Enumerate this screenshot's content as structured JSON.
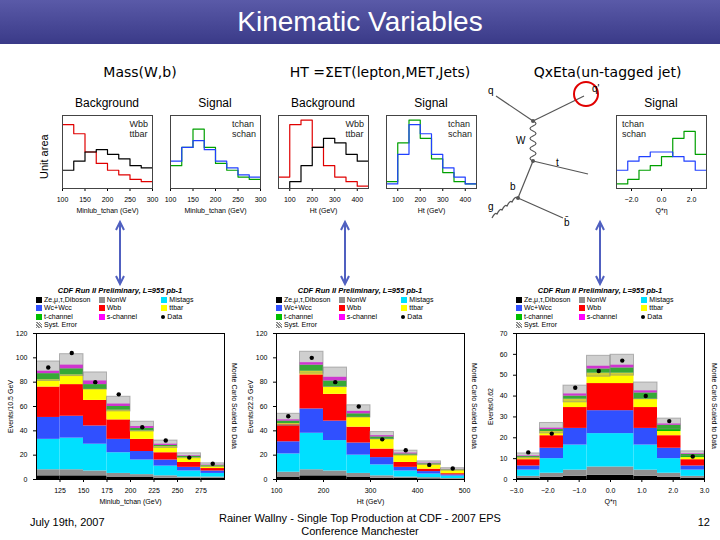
{
  "slide": {
    "title": "Kinematic Variables",
    "headers": [
      "Mass(W,b)",
      "HT =ΣET(lepton,MET,Jets)",
      "Qx​Eta(un-tagged jet)"
    ],
    "y_label": "Unit area",
    "diagram": {
      "labels": [
        "q",
        "q'",
        "W",
        "b",
        "t",
        "g",
        "b̄"
      ]
    },
    "footer": {
      "date": "July 19th, 2007",
      "text": [
        "Rainer Wallny - Single Top Production at CDF  - 2007 EPS",
        "Conference Manchester"
      ],
      "page": "12"
    }
  },
  "chart_data": [
    {
      "type": "histogram",
      "title": "Background",
      "x_label": "Minlub_tchan (GeV)",
      "bins": [
        100,
        125,
        150,
        175,
        200,
        225,
        250,
        275,
        300
      ],
      "xlim": [
        100,
        300
      ],
      "xticks": [
        100,
        150,
        200,
        250,
        300
      ],
      "ylim": [
        0,
        0.32
      ],
      "tick_labels": "x",
      "legend": "top-right",
      "series": [
        {
          "name": "Wbb",
          "color": "#e00000",
          "values": [
            0.28,
            0.24,
            0.16,
            0.11,
            0.08,
            0.06,
            0.04,
            0.03
          ]
        },
        {
          "name": "ttbar",
          "color": "#000000",
          "values": [
            0.08,
            0.12,
            0.16,
            0.17,
            0.15,
            0.13,
            0.1,
            0.09
          ]
        }
      ]
    },
    {
      "type": "histogram",
      "title": "Signal",
      "x_label": "Minlub_tchan (GeV)",
      "bins": [
        100,
        125,
        150,
        175,
        200,
        225,
        250,
        275,
        300
      ],
      "xlim": [
        100,
        300
      ],
      "xticks": [
        100,
        150,
        200,
        250,
        300
      ],
      "ylim": [
        0,
        0.32
      ],
      "tick_labels": "x",
      "legend": "top-right",
      "series": [
        {
          "name": "tchan",
          "color": "#00a000",
          "values": [
            0.1,
            0.18,
            0.26,
            0.18,
            0.11,
            0.08,
            0.05,
            0.04
          ]
        },
        {
          "name": "schan",
          "color": "#2040ff",
          "values": [
            0.12,
            0.18,
            0.21,
            0.17,
            0.12,
            0.09,
            0.06,
            0.05
          ]
        }
      ]
    },
    {
      "type": "histogram",
      "title": "Background",
      "x_label": "Ht (GeV)",
      "bins": [
        50,
        100,
        150,
        200,
        250,
        300,
        350,
        400,
        450
      ],
      "xlim": [
        50,
        450
      ],
      "xticks": [
        100,
        200,
        300,
        400
      ],
      "ylim": [
        0,
        0.32
      ],
      "tick_labels": "x",
      "legend": "top-right",
      "series": [
        {
          "name": "Wbb",
          "color": "#e00000",
          "values": [
            0.05,
            0.28,
            0.3,
            0.18,
            0.1,
            0.05,
            0.03,
            0.01
          ]
        },
        {
          "name": "ttbar",
          "color": "#000000",
          "values": [
            0.0,
            0.03,
            0.1,
            0.18,
            0.22,
            0.2,
            0.15,
            0.12
          ]
        }
      ]
    },
    {
      "type": "histogram",
      "title": "Signal",
      "x_label": "Ht (GeV)",
      "bins": [
        50,
        100,
        150,
        200,
        250,
        300,
        350,
        400,
        450
      ],
      "xlim": [
        50,
        450
      ],
      "xticks": [
        100,
        200,
        300,
        400
      ],
      "ylim": [
        0,
        0.32
      ],
      "tick_labels": "x",
      "legend": "top-right",
      "series": [
        {
          "name": "tchan",
          "color": "#00a000",
          "values": [
            0.03,
            0.2,
            0.3,
            0.22,
            0.13,
            0.07,
            0.03,
            0.02
          ]
        },
        {
          "name": "schan",
          "color": "#2040ff",
          "values": [
            0.02,
            0.15,
            0.28,
            0.24,
            0.15,
            0.09,
            0.05,
            0.02
          ]
        }
      ]
    },
    {
      "type": "histogram",
      "title": "Signal",
      "x_label": "Q*η",
      "bins": [
        -3,
        -2.25,
        -1.5,
        -0.75,
        0,
        0.75,
        1.5,
        2.25,
        3
      ],
      "xlim": [
        -3,
        3
      ],
      "xticks": [
        -2,
        0,
        2
      ],
      "ylim": [
        0,
        0.32
      ],
      "tick_labels": "x",
      "legend": "top-left",
      "series": [
        {
          "name": "tchan",
          "color": "#00a000",
          "values": [
            0.02,
            0.04,
            0.08,
            0.1,
            0.14,
            0.22,
            0.25,
            0.15
          ]
        },
        {
          "name": "schan",
          "color": "#2040ff",
          "values": [
            0.08,
            0.12,
            0.14,
            0.16,
            0.16,
            0.14,
            0.12,
            0.08
          ]
        }
      ]
    },
    {
      "type": "histogram",
      "stacked": true,
      "title": "CDF Run II Preliminary, L=955 pb-1",
      "x_label": "Minlub_tchan (GeV)",
      "y_label": "Events/10.5 GeV",
      "annotations": [
        "Monte Carlo Scaled to Data"
      ],
      "bins": [
        100,
        125,
        150,
        175,
        200,
        225,
        250,
        275,
        300
      ],
      "xlim": [
        100,
        300
      ],
      "xticks": [
        125,
        150,
        175,
        200,
        225,
        250,
        275
      ],
      "ylim": [
        0,
        120
      ],
      "yticks": [
        0,
        20,
        40,
        60,
        80,
        100,
        120
      ],
      "series": [
        {
          "name": "Ze,μ,τ,Diboson",
          "color": "#000000",
          "values": [
            3,
            3,
            3,
            2,
            2,
            1,
            1,
            1
          ]
        },
        {
          "name": "NonW",
          "color": "#909090",
          "values": [
            5,
            5,
            4,
            3,
            2,
            2,
            1,
            1
          ]
        },
        {
          "name": "Mistags",
          "color": "#00e0ff",
          "values": [
            25,
            26,
            22,
            17,
            12,
            8,
            5,
            3
          ]
        },
        {
          "name": "Wc+Wcc",
          "color": "#3050ff",
          "values": [
            18,
            18,
            15,
            11,
            7,
            5,
            3,
            2
          ]
        },
        {
          "name": "Wbb",
          "color": "#ff0000",
          "values": [
            25,
            26,
            21,
            16,
            10,
            6,
            4,
            2
          ]
        },
        {
          "name": "ttbar",
          "color": "#ffff00",
          "values": [
            6,
            8,
            9,
            8,
            7,
            5,
            4,
            2
          ]
        },
        {
          "name": "t-channel",
          "color": "#00c000",
          "values": [
            5,
            5,
            4,
            3,
            2,
            1,
            1,
            0.5
          ]
        },
        {
          "name": "s-channel",
          "color": "#ff00ff",
          "values": [
            2,
            3,
            3,
            2,
            1.5,
            1,
            0.5,
            0.3
          ]
        },
        {
          "name": "Data",
          "type": "scatter",
          "color": "#000000",
          "values": [
            92,
            104,
            80,
            70,
            43,
            32,
            18,
            13
          ]
        },
        {
          "name": "Syst. Error",
          "type": "error_band",
          "color": "#888888",
          "values": [
            8,
            9,
            7,
            6,
            4,
            3,
            2,
            1.5
          ]
        }
      ]
    },
    {
      "type": "histogram",
      "stacked": true,
      "title": "CDF Run II Preliminary, L=955 pb-1",
      "x_label": "Ht (GeV)",
      "y_label": "Events/22.5 GeV",
      "annotations": [
        "Monte Carlo Scaled to Data"
      ],
      "bins": [
        100,
        150,
        200,
        250,
        300,
        350,
        400,
        450,
        500
      ],
      "xlim": [
        100,
        500
      ],
      "xticks": [
        100,
        200,
        300,
        400,
        500
      ],
      "ylim": [
        0,
        120
      ],
      "yticks": [
        0,
        20,
        40,
        60,
        80,
        100,
        120
      ],
      "series": [
        {
          "name": "Ze,μ,τ,Diboson",
          "color": "#000000",
          "values": [
            2,
            3,
            3,
            2,
            1,
            1,
            0.5,
            0.3
          ]
        },
        {
          "name": "NonW",
          "color": "#909090",
          "values": [
            4,
            5,
            4,
            3,
            2,
            1,
            1,
            0.5
          ]
        },
        {
          "name": "Mistags",
          "color": "#00e0ff",
          "values": [
            15,
            30,
            25,
            15,
            9,
            5,
            3,
            2
          ]
        },
        {
          "name": "Wc+Wcc",
          "color": "#3050ff",
          "values": [
            10,
            20,
            16,
            10,
            6,
            3,
            2,
            1
          ]
        },
        {
          "name": "Wbb",
          "color": "#ff0000",
          "values": [
            14,
            28,
            22,
            13,
            7,
            4,
            2,
            1
          ]
        },
        {
          "name": "ttbar",
          "color": "#ffff00",
          "values": [
            1,
            3,
            6,
            8,
            8,
            6,
            4,
            3
          ]
        },
        {
          "name": "t-channel",
          "color": "#00c000",
          "values": [
            2,
            5,
            5,
            3,
            2,
            1,
            0.5,
            0.3
          ]
        },
        {
          "name": "s-channel",
          "color": "#ff00ff",
          "values": [
            1,
            2,
            3,
            2,
            1,
            0.7,
            0.4,
            0.2
          ]
        },
        {
          "name": "Data",
          "type": "scatter",
          "color": "#000000",
          "values": [
            52,
            100,
            80,
            60,
            33,
            24,
            12,
            9
          ]
        },
        {
          "name": "Syst. Error",
          "type": "error_band",
          "color": "#888888",
          "values": [
            5,
            9,
            8,
            5,
            3,
            2,
            1.5,
            1
          ]
        }
      ]
    },
    {
      "type": "histogram",
      "stacked": true,
      "title": "CDF Run II Preliminary, L=955 pb-1",
      "x_label": "Q*η",
      "y_label": "Events/0.62",
      "annotations": [
        "Monte Carlo Scaled to Data"
      ],
      "bins": [
        -3,
        -2.25,
        -1.5,
        -0.75,
        0,
        0.75,
        1.5,
        2.25,
        3
      ],
      "xlim": [
        -3,
        3
      ],
      "xticks": [
        -3,
        -2,
        -1,
        0,
        1,
        2,
        3
      ],
      "ylim": [
        0,
        70
      ],
      "yticks": [
        0,
        10,
        20,
        30,
        40,
        50,
        60,
        70
      ],
      "series": [
        {
          "name": "Ze,μ,τ,Diboson",
          "color": "#000000",
          "values": [
            0.5,
            1,
            1.5,
            2,
            2,
            1.5,
            1,
            0.5
          ]
        },
        {
          "name": "NonW",
          "color": "#909090",
          "values": [
            1,
            2,
            3,
            4,
            4,
            3,
            2,
            1
          ]
        },
        {
          "name": "Mistags",
          "color": "#00e0ff",
          "values": [
            3,
            7,
            12,
            16,
            16,
            12,
            7,
            3
          ]
        },
        {
          "name": "Wc+Wcc",
          "color": "#3050ff",
          "values": [
            2,
            5,
            8,
            11,
            11,
            8,
            5,
            2
          ]
        },
        {
          "name": "Wbb",
          "color": "#ff0000",
          "values": [
            3,
            6,
            10,
            13,
            13,
            10,
            6,
            3
          ]
        },
        {
          "name": "ttbar",
          "color": "#ffff00",
          "values": [
            1,
            2,
            4,
            5,
            5,
            4,
            2,
            1
          ]
        },
        {
          "name": "t-channel",
          "color": "#00c000",
          "values": [
            0.5,
            1,
            1.5,
            2,
            2.5,
            3,
            3,
            1.5
          ]
        },
        {
          "name": "s-channel",
          "color": "#ff00ff",
          "values": [
            0.3,
            0.6,
            1,
            1.3,
            1.3,
            1,
            0.6,
            0.3
          ]
        },
        {
          "name": "Data",
          "type": "scatter",
          "color": "#000000",
          "values": [
            13,
            22,
            44,
            52,
            57,
            40,
            28,
            11
          ]
        },
        {
          "name": "Syst. Error",
          "type": "error_band",
          "color": "#888888",
          "values": [
            1.2,
            2.5,
            4,
            5,
            5,
            4,
            2.6,
            1.2
          ]
        }
      ]
    }
  ]
}
